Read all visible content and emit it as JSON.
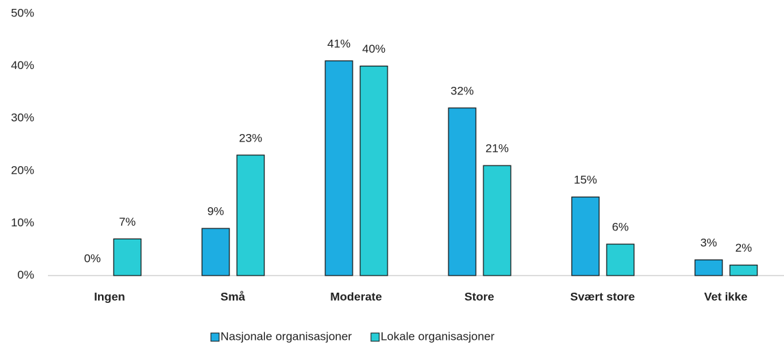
{
  "chart_data": {
    "type": "bar",
    "categories": [
      "Ingen",
      "Små",
      "Moderate",
      "Store",
      "Svært store",
      "Vet ikke"
    ],
    "series": [
      {
        "name": "Nasjonale organisasjoner",
        "color": "#1eade2",
        "values": [
          0,
          9,
          41,
          32,
          15,
          3
        ],
        "value_labels": [
          "0%",
          "9%",
          "41%",
          "32%",
          "15%",
          "3%"
        ]
      },
      {
        "name": "Lokale organisasjoner",
        "color": "#29cdd6",
        "values": [
          7,
          23,
          40,
          21,
          6,
          2
        ],
        "value_labels": [
          "7%",
          "23%",
          "40%",
          "21%",
          "6%",
          "2%"
        ]
      }
    ],
    "ylim": [
      0,
      50
    ],
    "yticks": [
      {
        "value": 0,
        "label": "0%"
      },
      {
        "value": 10,
        "label": "10%"
      },
      {
        "value": 20,
        "label": "20%"
      },
      {
        "value": 30,
        "label": "30%"
      },
      {
        "value": 40,
        "label": "40%"
      },
      {
        "value": 50,
        "label": "50%"
      }
    ],
    "grid": false,
    "legend": "bottom"
  }
}
